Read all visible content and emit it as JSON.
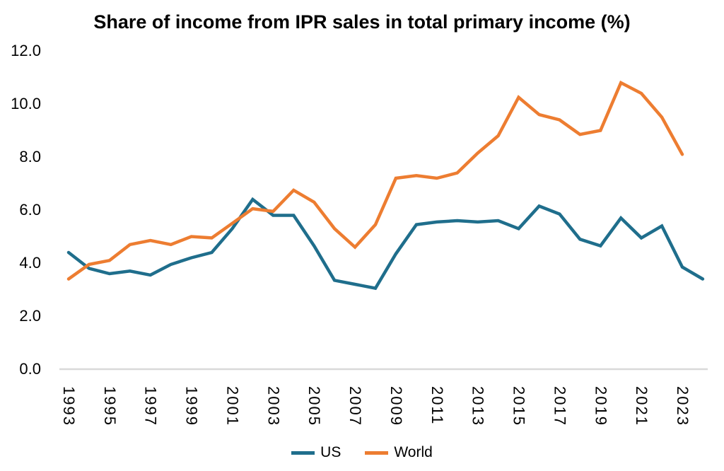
{
  "title": "Share of income from IPR sales in total primary income (%)",
  "colors": {
    "us": "#1f6e8c",
    "world": "#ed7d31",
    "axis_line": "#d9d9d9",
    "text": "#000000",
    "background": "#ffffff"
  },
  "legend": [
    {
      "label": "US"
    },
    {
      "label": "World"
    }
  ],
  "chart_data": {
    "type": "line",
    "title": "Share of income from IPR sales in total primary income (%)",
    "x": [
      1993,
      1994,
      1995,
      1996,
      1997,
      1998,
      1999,
      2000,
      2001,
      2002,
      2003,
      2004,
      2005,
      2006,
      2007,
      2008,
      2009,
      2010,
      2011,
      2012,
      2013,
      2014,
      2015,
      2016,
      2017,
      2018,
      2019,
      2020,
      2021,
      2022,
      2023,
      2024
    ],
    "x_tick_years": [
      1993,
      1995,
      1997,
      1999,
      2001,
      2003,
      2005,
      2007,
      2009,
      2011,
      2013,
      2015,
      2017,
      2019,
      2021,
      2023
    ],
    "x_tick_labels": [
      "1993",
      "1995",
      "1997",
      "1999",
      "2001",
      "2003",
      "2005",
      "2007",
      "2009",
      "2011",
      "2013",
      "2015",
      "2017",
      "2019",
      "2021",
      "2023"
    ],
    "y_ticks": [
      0,
      2,
      4,
      6,
      8,
      10,
      12
    ],
    "y_tick_labels": [
      "0.0",
      "2.0",
      "4.0",
      "6.0",
      "8.0",
      "10.0",
      "12.0"
    ],
    "ylim": [
      0,
      12
    ],
    "grid": false,
    "legend_position": "bottom",
    "series": [
      {
        "name": "US",
        "color": "#1f6e8c",
        "values": [
          4.4,
          3.8,
          3.6,
          3.7,
          3.55,
          3.95,
          4.2,
          4.4,
          5.3,
          6.4,
          5.8,
          5.8,
          4.65,
          3.35,
          3.2,
          3.05,
          4.35,
          5.45,
          5.55,
          5.6,
          5.55,
          5.6,
          5.3,
          6.15,
          5.85,
          4.9,
          4.65,
          5.7,
          4.95,
          5.4,
          3.85,
          3.4
        ]
      },
      {
        "name": "World",
        "color": "#ed7d31",
        "values": [
          3.4,
          3.95,
          4.1,
          4.7,
          4.85,
          4.7,
          5.0,
          4.95,
          5.5,
          6.05,
          5.95,
          6.75,
          6.3,
          5.3,
          4.6,
          5.45,
          7.2,
          7.3,
          7.2,
          7.4,
          8.15,
          8.8,
          10.25,
          9.6,
          9.4,
          8.85,
          9.0,
          10.8,
          10.4,
          9.5,
          8.1,
          null
        ]
      }
    ]
  }
}
